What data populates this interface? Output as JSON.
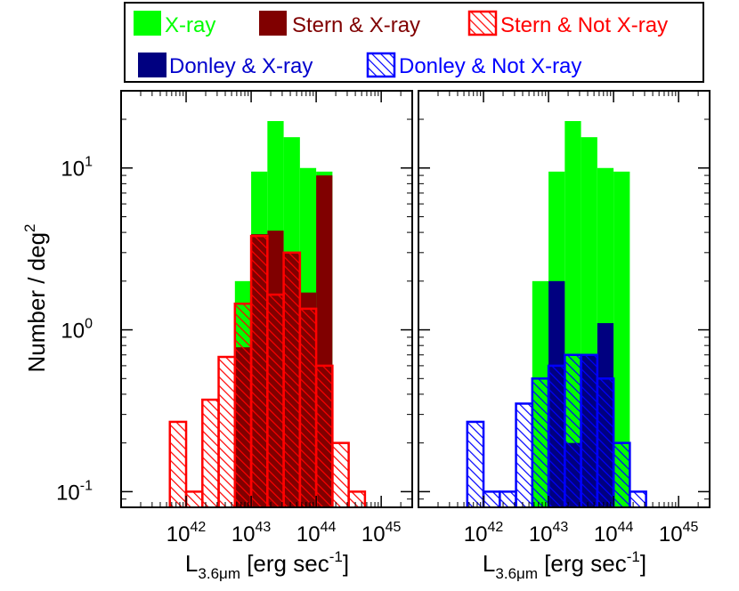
{
  "legend": {
    "items": [
      {
        "id": "xray",
        "label": "X-ray",
        "color": "#00FF00",
        "text_color": "#00FF00",
        "style": "filled"
      },
      {
        "id": "stern_xray",
        "label": "Stern & X-ray",
        "color": "#800000",
        "text_color": "#800000",
        "style": "filled"
      },
      {
        "id": "stern_not",
        "label": "Stern & Not X-ray",
        "color": "#FF0000",
        "text_color": "#FF0000",
        "style": "hatched"
      },
      {
        "id": "donley_xray",
        "label": "Donley & X-ray",
        "color": "#000080",
        "text_color": "#0000CC",
        "style": "filled"
      },
      {
        "id": "donley_not",
        "label": "Donley & Not X-ray",
        "color": "#0000FF",
        "text_color": "#0000FF",
        "style": "hatched"
      }
    ]
  },
  "axes": {
    "ylabel_main": "Number / deg",
    "ylabel_sup": "2",
    "xlabel_main": "L",
    "xlabel_sub": "3.6μm",
    "xlabel_units": " [erg sec",
    "xlabel_sup": "-1",
    "xlabel_close": "]",
    "x_tick_base": "10",
    "x_tick_exponents": [
      "42",
      "43",
      "44",
      "45"
    ],
    "y_tick_base": "10",
    "y_tick_exponents": [
      "-1",
      "0",
      "1"
    ]
  },
  "chart_data": [
    {
      "type": "bar",
      "panel": "left",
      "x_scale": "log",
      "y_scale": "log",
      "xlim": [
        1e+41,
        3e+45
      ],
      "ylim": [
        0.08,
        30
      ],
      "bin_edges_log10": [
        41.75,
        42.0,
        42.25,
        42.5,
        42.75,
        43.0,
        43.25,
        43.5,
        43.75,
        44.0,
        44.25,
        44.5,
        44.75,
        45.0,
        45.25
      ],
      "series": [
        {
          "name": "X-ray",
          "ref": "xray",
          "values": [
            null,
            null,
            null,
            null,
            2.0,
            9.5,
            19.5,
            15.5,
            10.0,
            9.5,
            null,
            null,
            null,
            null
          ]
        },
        {
          "name": "Stern & X-ray",
          "ref": "stern_xray",
          "values": [
            null,
            null,
            null,
            null,
            0.78,
            3.9,
            4.1,
            3.0,
            1.7,
            9.0,
            null,
            null,
            null,
            null
          ]
        },
        {
          "name": "Stern & Not X-ray",
          "ref": "stern_not",
          "values": [
            0.27,
            0.1,
            0.37,
            0.68,
            1.45,
            3.8,
            1.65,
            3.0,
            1.35,
            0.6,
            0.2,
            0.1,
            null,
            null
          ]
        }
      ]
    },
    {
      "type": "bar",
      "panel": "right",
      "x_scale": "log",
      "y_scale": "log",
      "xlim": [
        1e+41,
        3e+45
      ],
      "ylim": [
        0.08,
        30
      ],
      "bin_edges_log10": [
        41.75,
        42.0,
        42.25,
        42.5,
        42.75,
        43.0,
        43.25,
        43.5,
        43.75,
        44.0,
        44.25,
        44.5,
        44.75,
        45.0,
        45.25
      ],
      "series": [
        {
          "name": "X-ray",
          "ref": "xray",
          "values": [
            null,
            null,
            null,
            null,
            2.0,
            9.5,
            19.5,
            15.5,
            10.0,
            9.5,
            null,
            null,
            null,
            null
          ]
        },
        {
          "name": "Donley & X-ray",
          "ref": "donley_xray",
          "values": [
            null,
            null,
            null,
            null,
            null,
            2.0,
            0.2,
            0.7,
            1.1,
            null,
            null,
            null,
            null,
            null
          ]
        },
        {
          "name": "Donley & Not X-ray",
          "ref": "donley_not",
          "values": [
            0.27,
            0.1,
            0.1,
            0.35,
            0.5,
            0.6,
            0.7,
            0.7,
            0.5,
            0.2,
            0.1,
            null,
            null,
            null
          ]
        }
      ]
    }
  ]
}
